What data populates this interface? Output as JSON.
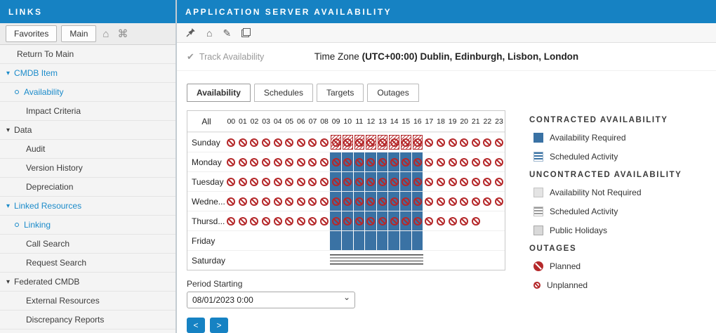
{
  "icons": {
    "home": "⌂",
    "overview": "⌘",
    "edit": "✎",
    "check": "✔",
    "chevron": "▾"
  },
  "colors": {
    "accent": "#1682c3",
    "availability": "#3a72a4",
    "outage": "#b5292b"
  },
  "sidebar": {
    "title": "LINKS",
    "tabs": [
      {
        "label": "Favorites"
      },
      {
        "label": "Main"
      }
    ],
    "items": [
      {
        "label": "Return To Main",
        "kind": "root",
        "blue": false
      },
      {
        "label": "CMDB Item",
        "kind": "group",
        "blue": true
      },
      {
        "label": "Availability",
        "kind": "dot",
        "blue": true
      },
      {
        "label": "Impact Criteria",
        "kind": "sub",
        "blue": false
      },
      {
        "label": "Data",
        "kind": "group",
        "blue": false
      },
      {
        "label": "Audit",
        "kind": "sub",
        "blue": false
      },
      {
        "label": "Version History",
        "kind": "sub",
        "blue": false
      },
      {
        "label": "Depreciation",
        "kind": "sub",
        "blue": false
      },
      {
        "label": "Linked Resources",
        "kind": "group",
        "blue": true
      },
      {
        "label": "Linking",
        "kind": "dot",
        "blue": true
      },
      {
        "label": "Call Search",
        "kind": "sub",
        "blue": false
      },
      {
        "label": "Request Search",
        "kind": "sub",
        "blue": false
      },
      {
        "label": "Federated CMDB",
        "kind": "group",
        "blue": false
      },
      {
        "label": "External Resources",
        "kind": "sub",
        "blue": false
      },
      {
        "label": "Discrepancy Reports",
        "kind": "sub",
        "blue": false
      }
    ]
  },
  "main": {
    "title": "APPLICATION SERVER AVAILABILITY",
    "track_label": "Track Availability",
    "timezone_label": "Time Zone ",
    "timezone_value": "(UTC+00:00) Dublin, Edinburgh, Lisbon, London",
    "tabs": [
      {
        "label": "Availability",
        "active": true
      },
      {
        "label": "Schedules",
        "active": false
      },
      {
        "label": "Targets",
        "active": false
      },
      {
        "label": "Outages",
        "active": false
      }
    ],
    "period": {
      "label": "Period Starting",
      "value": "08/01/2023 0:00",
      "prev": "<",
      "next": ">"
    }
  },
  "grid": {
    "corner": "All",
    "hours": [
      "00",
      "01",
      "02",
      "03",
      "04",
      "05",
      "06",
      "07",
      "08",
      "09",
      "10",
      "11",
      "12",
      "13",
      "14",
      "15",
      "16",
      "17",
      "18",
      "19",
      "20",
      "21",
      "22",
      "23"
    ],
    "days": [
      {
        "label": "Sunday",
        "cells": [
          "u",
          "u",
          "u",
          "u",
          "u",
          "u",
          "u",
          "u",
          "u",
          "pu",
          "pu",
          "pu",
          "pu",
          "pu",
          "pu",
          "pu",
          "pu",
          "u",
          "u",
          "u",
          "u",
          "u",
          "u",
          "u"
        ]
      },
      {
        "label": "Monday",
        "cells": [
          "u",
          "u",
          "u",
          "u",
          "u",
          "u",
          "u",
          "u",
          "u",
          "au",
          "au",
          "au",
          "au",
          "au",
          "au",
          "au",
          "au",
          "u",
          "u",
          "u",
          "u",
          "u",
          "u",
          "u"
        ]
      },
      {
        "label": "Tuesday",
        "cells": [
          "u",
          "u",
          "u",
          "u",
          "u",
          "u",
          "u",
          "u",
          "u",
          "au",
          "au",
          "au",
          "au",
          "au",
          "au",
          "au",
          "au",
          "u",
          "u",
          "u",
          "u",
          "u",
          "u",
          "u"
        ]
      },
      {
        "label": "Wedne...",
        "cells": [
          "u",
          "u",
          "u",
          "u",
          "u",
          "u",
          "u",
          "u",
          "u",
          "au",
          "au",
          "au",
          "au",
          "au",
          "au",
          "au",
          "au",
          "u",
          "u",
          "u",
          "u",
          "u",
          "u",
          "u"
        ]
      },
      {
        "label": "Thursd...",
        "cells": [
          "u",
          "u",
          "u",
          "u",
          "u",
          "u",
          "u",
          "u",
          "u",
          "au",
          "au",
          "au",
          "au",
          "au",
          "au",
          "au",
          "au",
          "u",
          "u",
          "u",
          "u",
          "u",
          "",
          ""
        ]
      },
      {
        "label": "Friday",
        "cells": [
          "",
          "",
          "",
          "",
          "",
          "",
          "",
          "",
          "",
          "a",
          "a",
          "a",
          "a",
          "a",
          "a",
          "a",
          "a",
          "",
          "",
          "",
          "",
          "",
          "",
          ""
        ]
      },
      {
        "label": "Saturday",
        "cells": [
          "",
          "",
          "",
          "",
          "",
          "",
          "",
          "",
          "",
          "s",
          "s",
          "s",
          "s",
          "s",
          "s",
          "s",
          "s",
          "",
          "",
          "",
          "",
          "",
          "",
          ""
        ]
      }
    ]
  },
  "legend": {
    "sections": [
      {
        "title": "CONTRACTED AVAILABILITY",
        "items": [
          {
            "label": "Availability Required",
            "icon": "square-blue"
          },
          {
            "label": "Scheduled Activity",
            "icon": "square-blue-striped"
          }
        ]
      },
      {
        "title": "UNCONTRACTED AVAILABILITY",
        "items": [
          {
            "label": "Availability Not Required",
            "icon": "square-gray"
          },
          {
            "label": "Scheduled Activity",
            "icon": "square-gray-striped"
          },
          {
            "label": "Public Holidays",
            "icon": "square-holiday"
          }
        ]
      },
      {
        "title": "OUTAGES",
        "items": [
          {
            "label": "Planned",
            "icon": "circle-planned"
          },
          {
            "label": "Unplanned",
            "icon": "circle-unplanned"
          }
        ]
      }
    ]
  }
}
